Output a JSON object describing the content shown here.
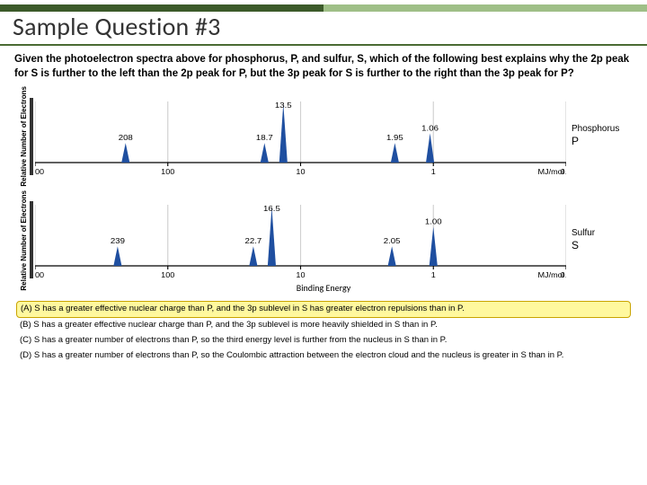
{
  "title": "Sample Question #3",
  "question": "Given the photoelectron spectra above for phosphorus, P, and sulfur, S, which of the following best explains why the 2p peak for S is further to the left than the 2p peak for P, but the 3p peak for S is further to the right than the 3p peak for P?",
  "accent": {
    "dark": "#3c5a2a",
    "light": "#9fbf87"
  },
  "charts": [
    {
      "element_name": "Phosphorus",
      "element_symbol": "P",
      "ylabel": "Relative Number of Electrons",
      "xunit": "MJ/mol",
      "xticks": [
        "1000",
        "100",
        "10",
        "1",
        "0.1"
      ],
      "xlim_log10": [
        3,
        -1
      ],
      "ymax": 10,
      "peaks": [
        {
          "label": "208",
          "x_log10": 2.318,
          "height": 2,
          "label_dy": 20
        },
        {
          "label": "18.7",
          "x_log10": 1.272,
          "height": 2,
          "label_dy": 20
        },
        {
          "label": "13.5",
          "x_log10": 1.13,
          "height": 6,
          "label_dy": 0
        },
        {
          "label": "1.95",
          "x_log10": 0.29,
          "height": 2,
          "label_dy": 20
        },
        {
          "label": "1.06",
          "x_log10": 0.025,
          "height": 3,
          "label_dy": 15
        }
      ],
      "peak_color": "#1f4fa0",
      "grid_color": "#d0d0d0",
      "axis_color": "#000000",
      "bg_color": "#ffffff"
    },
    {
      "element_name": "Sulfur",
      "element_symbol": "S",
      "ylabel": "Relative Number of Electrons",
      "xunit": "MJ/mol",
      "xticks": [
        "1000",
        "100",
        "10",
        "1",
        "0.1"
      ],
      "xlim_log10": [
        3,
        -1
      ],
      "ymax": 10,
      "peaks": [
        {
          "label": "239",
          "x_log10": 2.378,
          "height": 2,
          "label_dy": 20
        },
        {
          "label": "22.7",
          "x_log10": 1.356,
          "height": 2,
          "label_dy": 20
        },
        {
          "label": "16.5",
          "x_log10": 1.217,
          "height": 6,
          "label_dy": 0
        },
        {
          "label": "2.05",
          "x_log10": 0.312,
          "height": 2,
          "label_dy": 20
        },
        {
          "label": "1.00",
          "x_log10": 0.0,
          "height": 4,
          "label_dy": 10
        }
      ],
      "peak_color": "#1f4fa0",
      "grid_color": "#d0d0d0",
      "axis_color": "#000000",
      "bg_color": "#ffffff"
    }
  ],
  "binding_label": "Binding Energy",
  "answers": [
    {
      "key": "A",
      "text": "(A) S has a greater effective nuclear charge than P, and the 3p sublevel in S has greater electron repulsions than in P.",
      "highlight": true
    },
    {
      "key": "B",
      "text": "(B) S has a greater effective nuclear charge than P, and the 3p sublevel is more heavily shielded in S than in P.",
      "highlight": false
    },
    {
      "key": "C",
      "text": "(C) S has a greater number of electrons than P, so the third energy level is further from the nucleus in S than in P.",
      "highlight": false
    },
    {
      "key": "D",
      "text": "(D) S has a greater number of electrons than P, so the Coulombic attraction between the electron cloud and the nucleus is greater in S than in P.",
      "highlight": false
    }
  ]
}
